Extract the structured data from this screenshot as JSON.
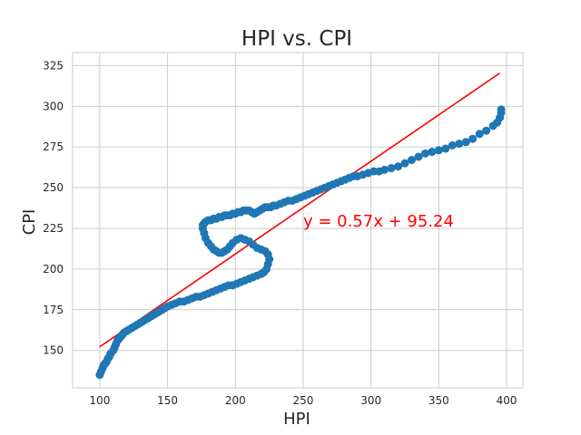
{
  "chart_data": {
    "type": "scatter",
    "title": "HPI vs. CPI",
    "xlabel": "HPI",
    "ylabel": "CPI",
    "xlim": [
      80,
      412
    ],
    "ylim": [
      127,
      333
    ],
    "xticks": [
      100,
      150,
      200,
      250,
      300,
      350,
      400
    ],
    "yticks": [
      150,
      175,
      200,
      225,
      250,
      275,
      300,
      325
    ],
    "grid": true,
    "colors": {
      "points": "#1f77b4",
      "regression": "#ff0000",
      "grid": "#cccccc",
      "text": "#262626"
    },
    "regression": {
      "slope": 0.57,
      "intercept": 95.24,
      "x_range": [
        100,
        395
      ],
      "label": "y = 0.57x + 95.24",
      "label_anchor": [
        250,
        226
      ]
    },
    "series": [
      {
        "x": [
          100,
          101,
          102,
          103,
          104,
          105,
          106,
          107,
          108,
          110,
          111,
          112,
          113,
          114,
          115,
          116,
          117,
          118,
          120,
          122,
          124,
          126,
          128,
          130,
          132,
          134,
          136,
          138,
          140,
          142,
          144,
          146,
          148,
          150,
          153,
          156,
          159,
          162,
          165,
          168,
          171,
          174,
          177,
          180,
          183,
          186,
          189,
          192,
          195,
          198,
          201,
          204,
          207,
          210,
          213,
          216,
          219,
          221,
          223,
          224,
          225,
          224,
          222,
          219,
          216,
          213,
          210,
          207,
          204,
          201,
          198,
          196,
          194,
          192,
          190,
          188,
          186,
          184,
          182,
          180,
          178,
          177,
          176,
          176,
          177,
          178,
          180,
          182,
          184,
          186,
          188,
          190,
          192,
          194,
          196,
          198,
          200,
          202,
          204,
          206,
          208,
          210,
          212,
          214,
          216,
          218,
          220,
          222,
          224,
          226,
          228,
          230,
          233,
          236,
          239,
          242,
          245,
          248,
          251,
          254,
          257,
          260,
          263,
          266,
          269,
          272,
          275,
          278,
          281,
          284,
          287,
          290,
          294,
          298,
          302,
          306,
          310,
          315,
          320,
          325,
          330,
          335,
          340,
          345,
          350,
          355,
          360,
          365,
          370,
          375,
          380,
          385,
          390,
          393,
          395,
          396,
          396
        ],
        "y": [
          135,
          137,
          139,
          141,
          142,
          143,
          145,
          146,
          148,
          150,
          152,
          154,
          156,
          157,
          158,
          159,
          160,
          161,
          162,
          163,
          164,
          165,
          166,
          167,
          168,
          169,
          170,
          171,
          172,
          173,
          174,
          175,
          176,
          177,
          178,
          179,
          180,
          180,
          181,
          182,
          183,
          183,
          184,
          185,
          186,
          187,
          188,
          189,
          190,
          190,
          191,
          192,
          193,
          194,
          195,
          196,
          197,
          198,
          200,
          203,
          206,
          209,
          211,
          212,
          213,
          215,
          217,
          218,
          219,
          218,
          216,
          214,
          212,
          211,
          210,
          210,
          211,
          212,
          214,
          216,
          219,
          222,
          225,
          227,
          228,
          229,
          230,
          230,
          231,
          231,
          232,
          232,
          233,
          233,
          233,
          234,
          234,
          235,
          235,
          236,
          236,
          236,
          235,
          234,
          235,
          236,
          237,
          238,
          238,
          238,
          239,
          239,
          240,
          241,
          242,
          242,
          243,
          244,
          245,
          246,
          247,
          248,
          249,
          250,
          251,
          252,
          253,
          254,
          255,
          256,
          257,
          257,
          258,
          259,
          260,
          260,
          261,
          262,
          263,
          265,
          267,
          269,
          271,
          272,
          273,
          274,
          276,
          277,
          278,
          280,
          283,
          285,
          288,
          290,
          293,
          296,
          298
        ]
      }
    ]
  }
}
